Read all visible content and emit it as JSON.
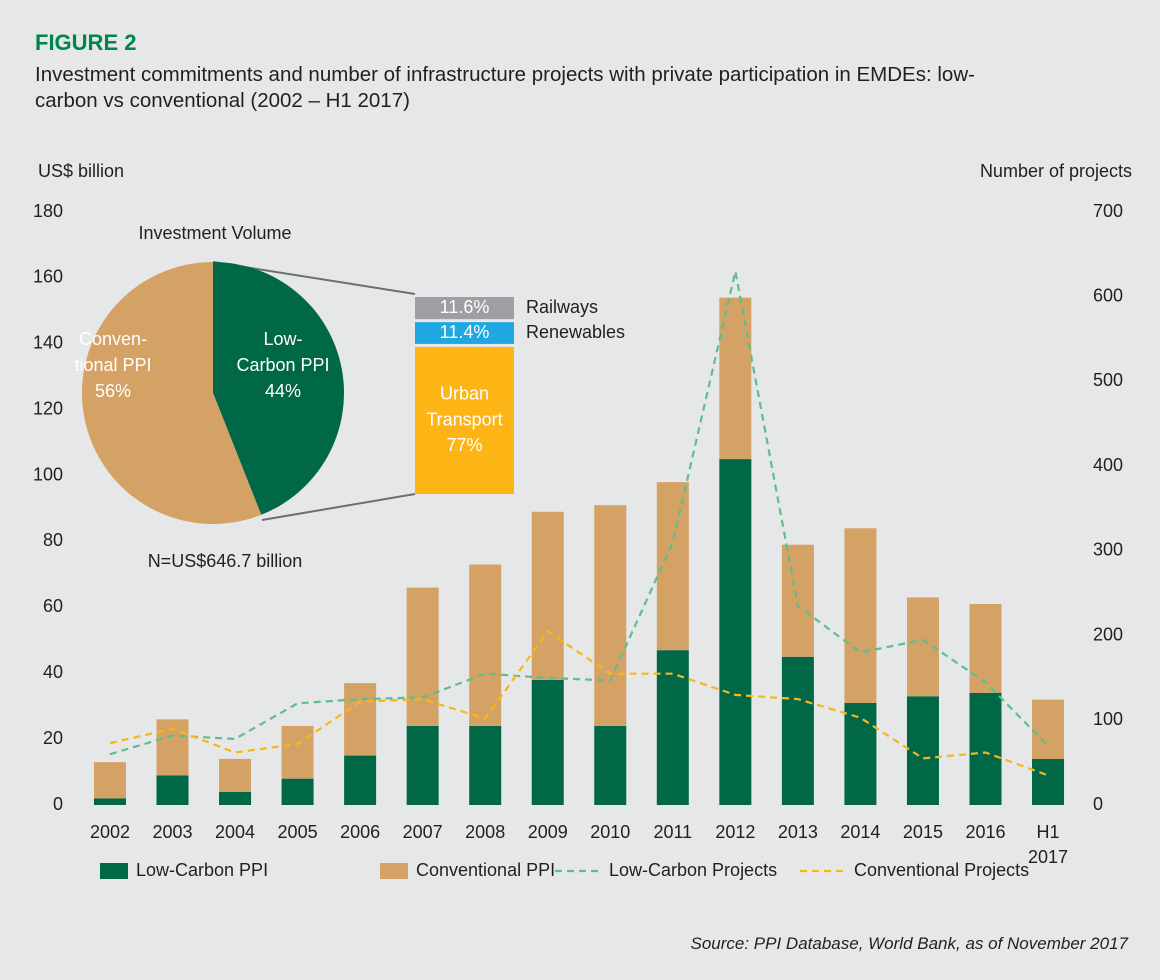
{
  "header": {
    "label": "FIGURE 2",
    "title": "Investment commitments and number of infrastructure projects with private participation in EMDEs: low-carbon vs conventional (2002 – H1 2017)"
  },
  "source": "Source: PPI Database, World Bank, as of November 2017",
  "chart_data": [
    {
      "type": "bar",
      "stacked": true,
      "categories": [
        "2002",
        "2003",
        "2004",
        "2005",
        "2006",
        "2007",
        "2008",
        "2009",
        "2010",
        "2011",
        "2012",
        "2013",
        "2014",
        "2015",
        "2016",
        "H1 2017"
      ],
      "y_label": "US$ billion",
      "y2_label": "Number of projects",
      "ylim": [
        0,
        180
      ],
      "yticks": [
        0,
        20,
        40,
        60,
        80,
        100,
        120,
        140,
        160,
        180
      ],
      "y2lim": [
        0,
        700
      ],
      "y2ticks": [
        0,
        100,
        200,
        300,
        400,
        500,
        600,
        700
      ],
      "legend": "bottom",
      "series": [
        {
          "name": "Low-Carbon PPI",
          "type": "bar",
          "color": "#006747",
          "values": [
            2,
            9,
            4,
            8,
            15,
            24,
            24,
            38,
            24,
            47,
            105,
            45,
            31,
            33,
            34,
            14
          ]
        },
        {
          "name": "Conventional PPI",
          "type": "bar",
          "color": "#d4a265",
          "values": [
            11,
            17,
            10,
            16,
            22,
            42,
            49,
            51,
            67,
            51,
            49,
            34,
            53,
            30,
            27,
            18
          ]
        },
        {
          "name": "Low-Carbon Projects",
          "type": "line",
          "line_style": "dashed",
          "axis": "y2",
          "color": "#5cbf8c",
          "values": [
            60,
            82,
            78,
            120,
            125,
            127,
            155,
            150,
            147,
            310,
            630,
            235,
            180,
            195,
            145,
            70
          ]
        },
        {
          "name": "Conventional Projects",
          "type": "line",
          "line_style": "dashed",
          "axis": "y2",
          "color": "#f7b718",
          "values": [
            73,
            90,
            62,
            72,
            122,
            125,
            102,
            205,
            155,
            155,
            130,
            125,
            103,
            55,
            62,
            35
          ]
        }
      ]
    },
    {
      "type": "pie",
      "title": "Investment Volume",
      "note": "N=US$646.7 billion",
      "slices": [
        {
          "label_lines": [
            "Low-",
            "Carbon PPI"
          ],
          "value": 44,
          "value_label": "44%",
          "color": "#006747"
        },
        {
          "label_lines": [
            "Conven-",
            "tional PPI"
          ],
          "value": 56,
          "value_label": "56%",
          "color": "#d4a265"
        }
      ]
    },
    {
      "type": "bar",
      "stacked": true,
      "segments": [
        {
          "name": "Urban Transport",
          "value": 77,
          "value_label": "77%",
          "color": "#fdb515"
        },
        {
          "name": "Renewables",
          "value": 11.4,
          "value_label": "11.4%",
          "color": "#1ea7e1"
        },
        {
          "name": "Railways",
          "value": 11.6,
          "value_label": "11.6%",
          "color": "#9d9fa2"
        }
      ]
    }
  ]
}
